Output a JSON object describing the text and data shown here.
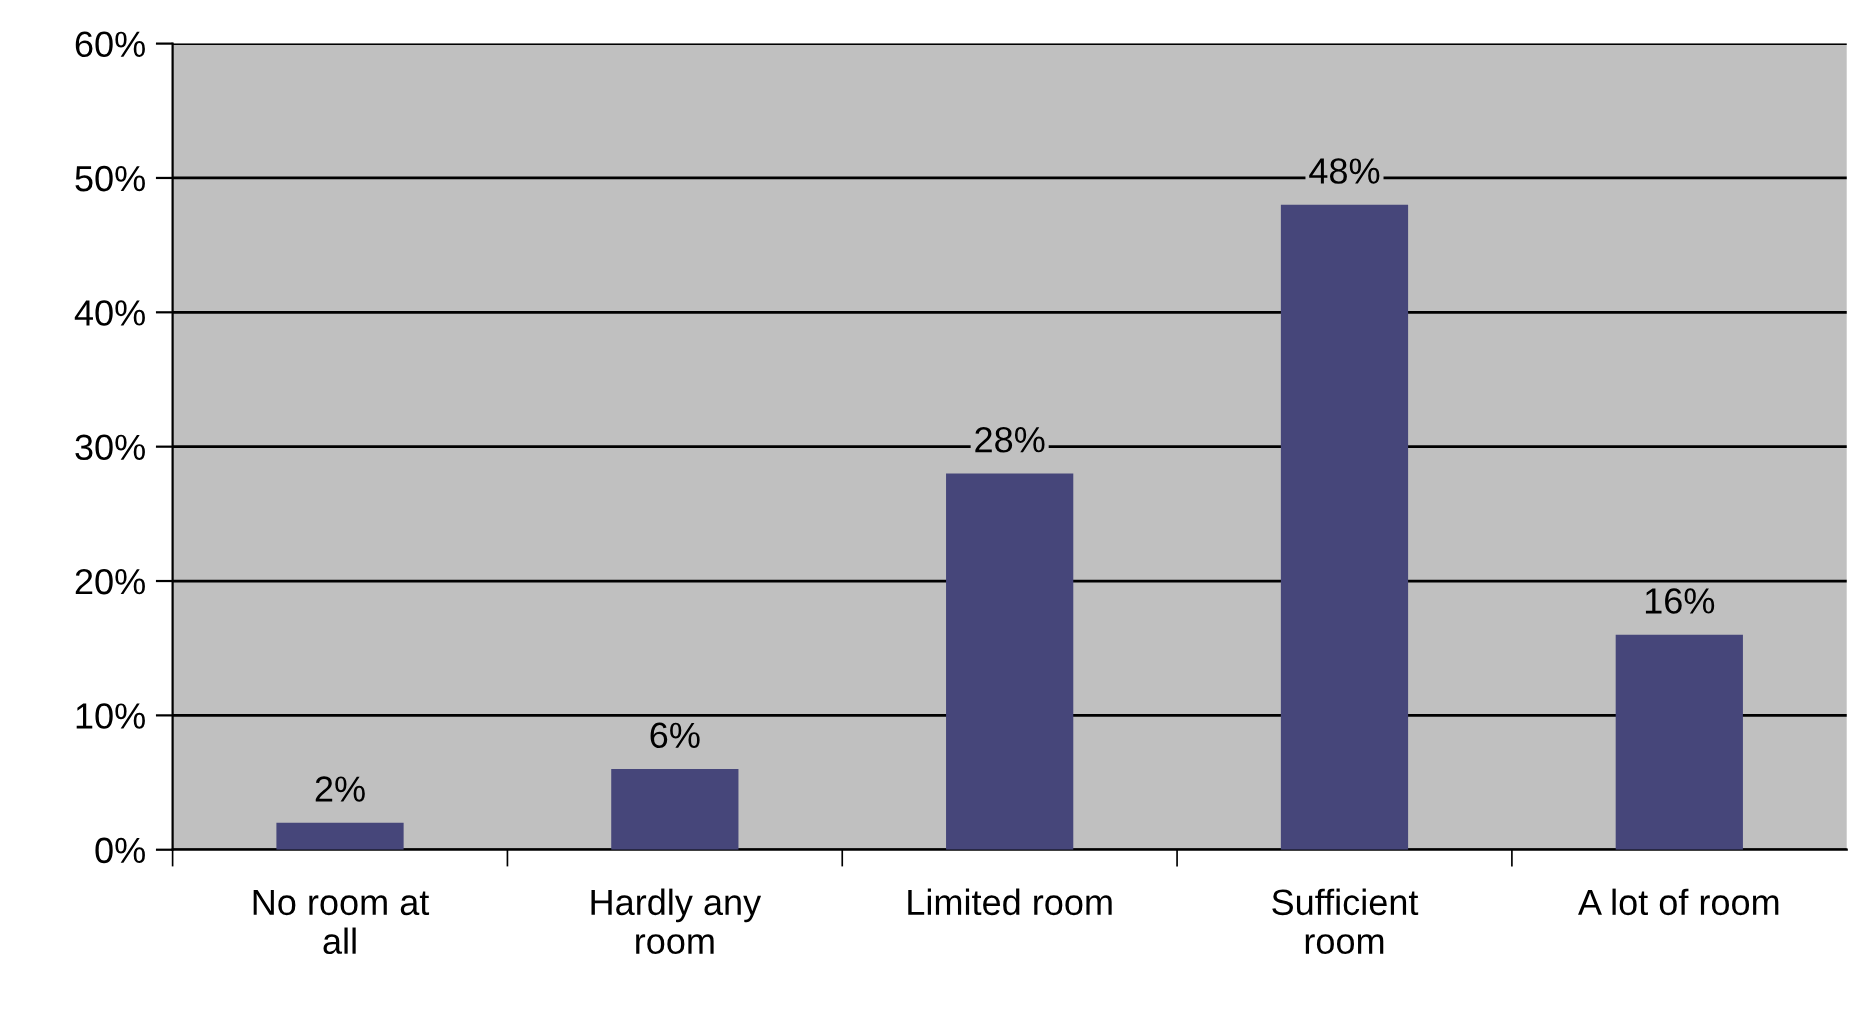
{
  "chart_data": {
    "type": "bar",
    "categories": [
      "No room at all",
      "Hardly any room",
      "Limited room",
      "Sufficient room",
      "A lot of room"
    ],
    "values": [
      2,
      6,
      28,
      48,
      16
    ],
    "value_labels": [
      "2%",
      "6%",
      "28%",
      "48%",
      "16%"
    ],
    "color": "#46467a",
    "ylim": [
      0,
      60
    ],
    "yticks": [
      {
        "value": 0,
        "label": "0%"
      },
      {
        "value": 10,
        "label": "10%"
      },
      {
        "value": 20,
        "label": "20%"
      },
      {
        "value": 30,
        "label": "30%"
      },
      {
        "value": 40,
        "label": "40%"
      },
      {
        "value": 50,
        "label": "50%"
      },
      {
        "value": 60,
        "label": "60%"
      }
    ],
    "grid": "y",
    "legend": false
  }
}
